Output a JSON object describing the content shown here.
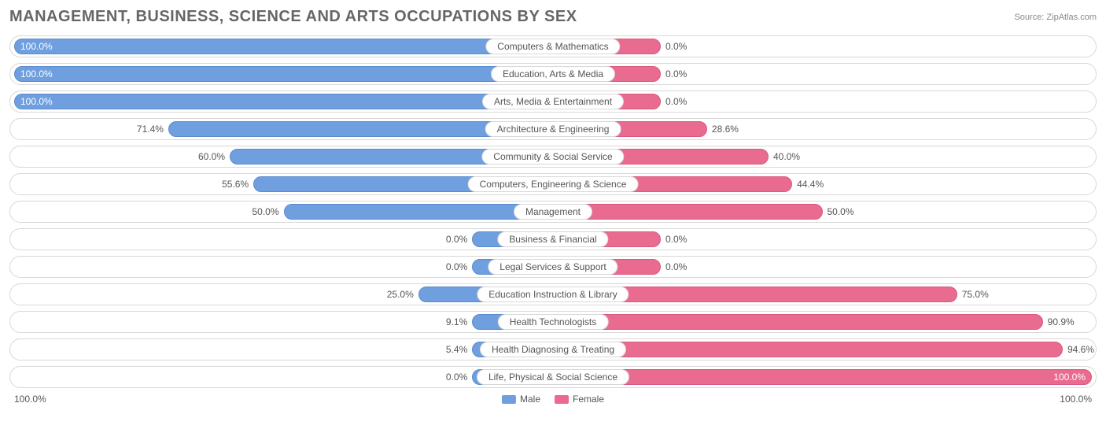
{
  "title": "MANAGEMENT, BUSINESS, SCIENCE AND ARTS OCCUPATIONS BY SEX",
  "source": "Source: ZipAtlas.com",
  "colors": {
    "male_fill": "#6f9fde",
    "male_border": "#5a8bcd",
    "female_fill": "#e96b8f",
    "female_border": "#d95a7f",
    "track_border": "#d8d8d8",
    "text": "#555555",
    "title_text": "#666666"
  },
  "axis": {
    "left": "100.0%",
    "right": "100.0%"
  },
  "legend": {
    "male": "Male",
    "female": "Female"
  },
  "chart": {
    "type": "diverging-bar",
    "male_min_bar_pct": 15,
    "female_min_bar_pct": 20,
    "rows": [
      {
        "label": "Computers & Mathematics",
        "male": 100.0,
        "male_text": "100.0%",
        "female": 0.0,
        "female_text": "0.0%"
      },
      {
        "label": "Education, Arts & Media",
        "male": 100.0,
        "male_text": "100.0%",
        "female": 0.0,
        "female_text": "0.0%"
      },
      {
        "label": "Arts, Media & Entertainment",
        "male": 100.0,
        "male_text": "100.0%",
        "female": 0.0,
        "female_text": "0.0%"
      },
      {
        "label": "Architecture & Engineering",
        "male": 71.4,
        "male_text": "71.4%",
        "female": 28.6,
        "female_text": "28.6%"
      },
      {
        "label": "Community & Social Service",
        "male": 60.0,
        "male_text": "60.0%",
        "female": 40.0,
        "female_text": "40.0%"
      },
      {
        "label": "Computers, Engineering & Science",
        "male": 55.6,
        "male_text": "55.6%",
        "female": 44.4,
        "female_text": "44.4%"
      },
      {
        "label": "Management",
        "male": 50.0,
        "male_text": "50.0%",
        "female": 50.0,
        "female_text": "50.0%"
      },
      {
        "label": "Business & Financial",
        "male": 0.0,
        "male_text": "0.0%",
        "female": 0.0,
        "female_text": "0.0%"
      },
      {
        "label": "Legal Services & Support",
        "male": 0.0,
        "male_text": "0.0%",
        "female": 0.0,
        "female_text": "0.0%"
      },
      {
        "label": "Education Instruction & Library",
        "male": 25.0,
        "male_text": "25.0%",
        "female": 75.0,
        "female_text": "75.0%"
      },
      {
        "label": "Health Technologists",
        "male": 9.1,
        "male_text": "9.1%",
        "female": 90.9,
        "female_text": "90.9%"
      },
      {
        "label": "Health Diagnosing & Treating",
        "male": 5.4,
        "male_text": "5.4%",
        "female": 94.6,
        "female_text": "94.6%"
      },
      {
        "label": "Life, Physical & Social Science",
        "male": 0.0,
        "male_text": "0.0%",
        "female": 100.0,
        "female_text": "100.0%"
      }
    ]
  }
}
